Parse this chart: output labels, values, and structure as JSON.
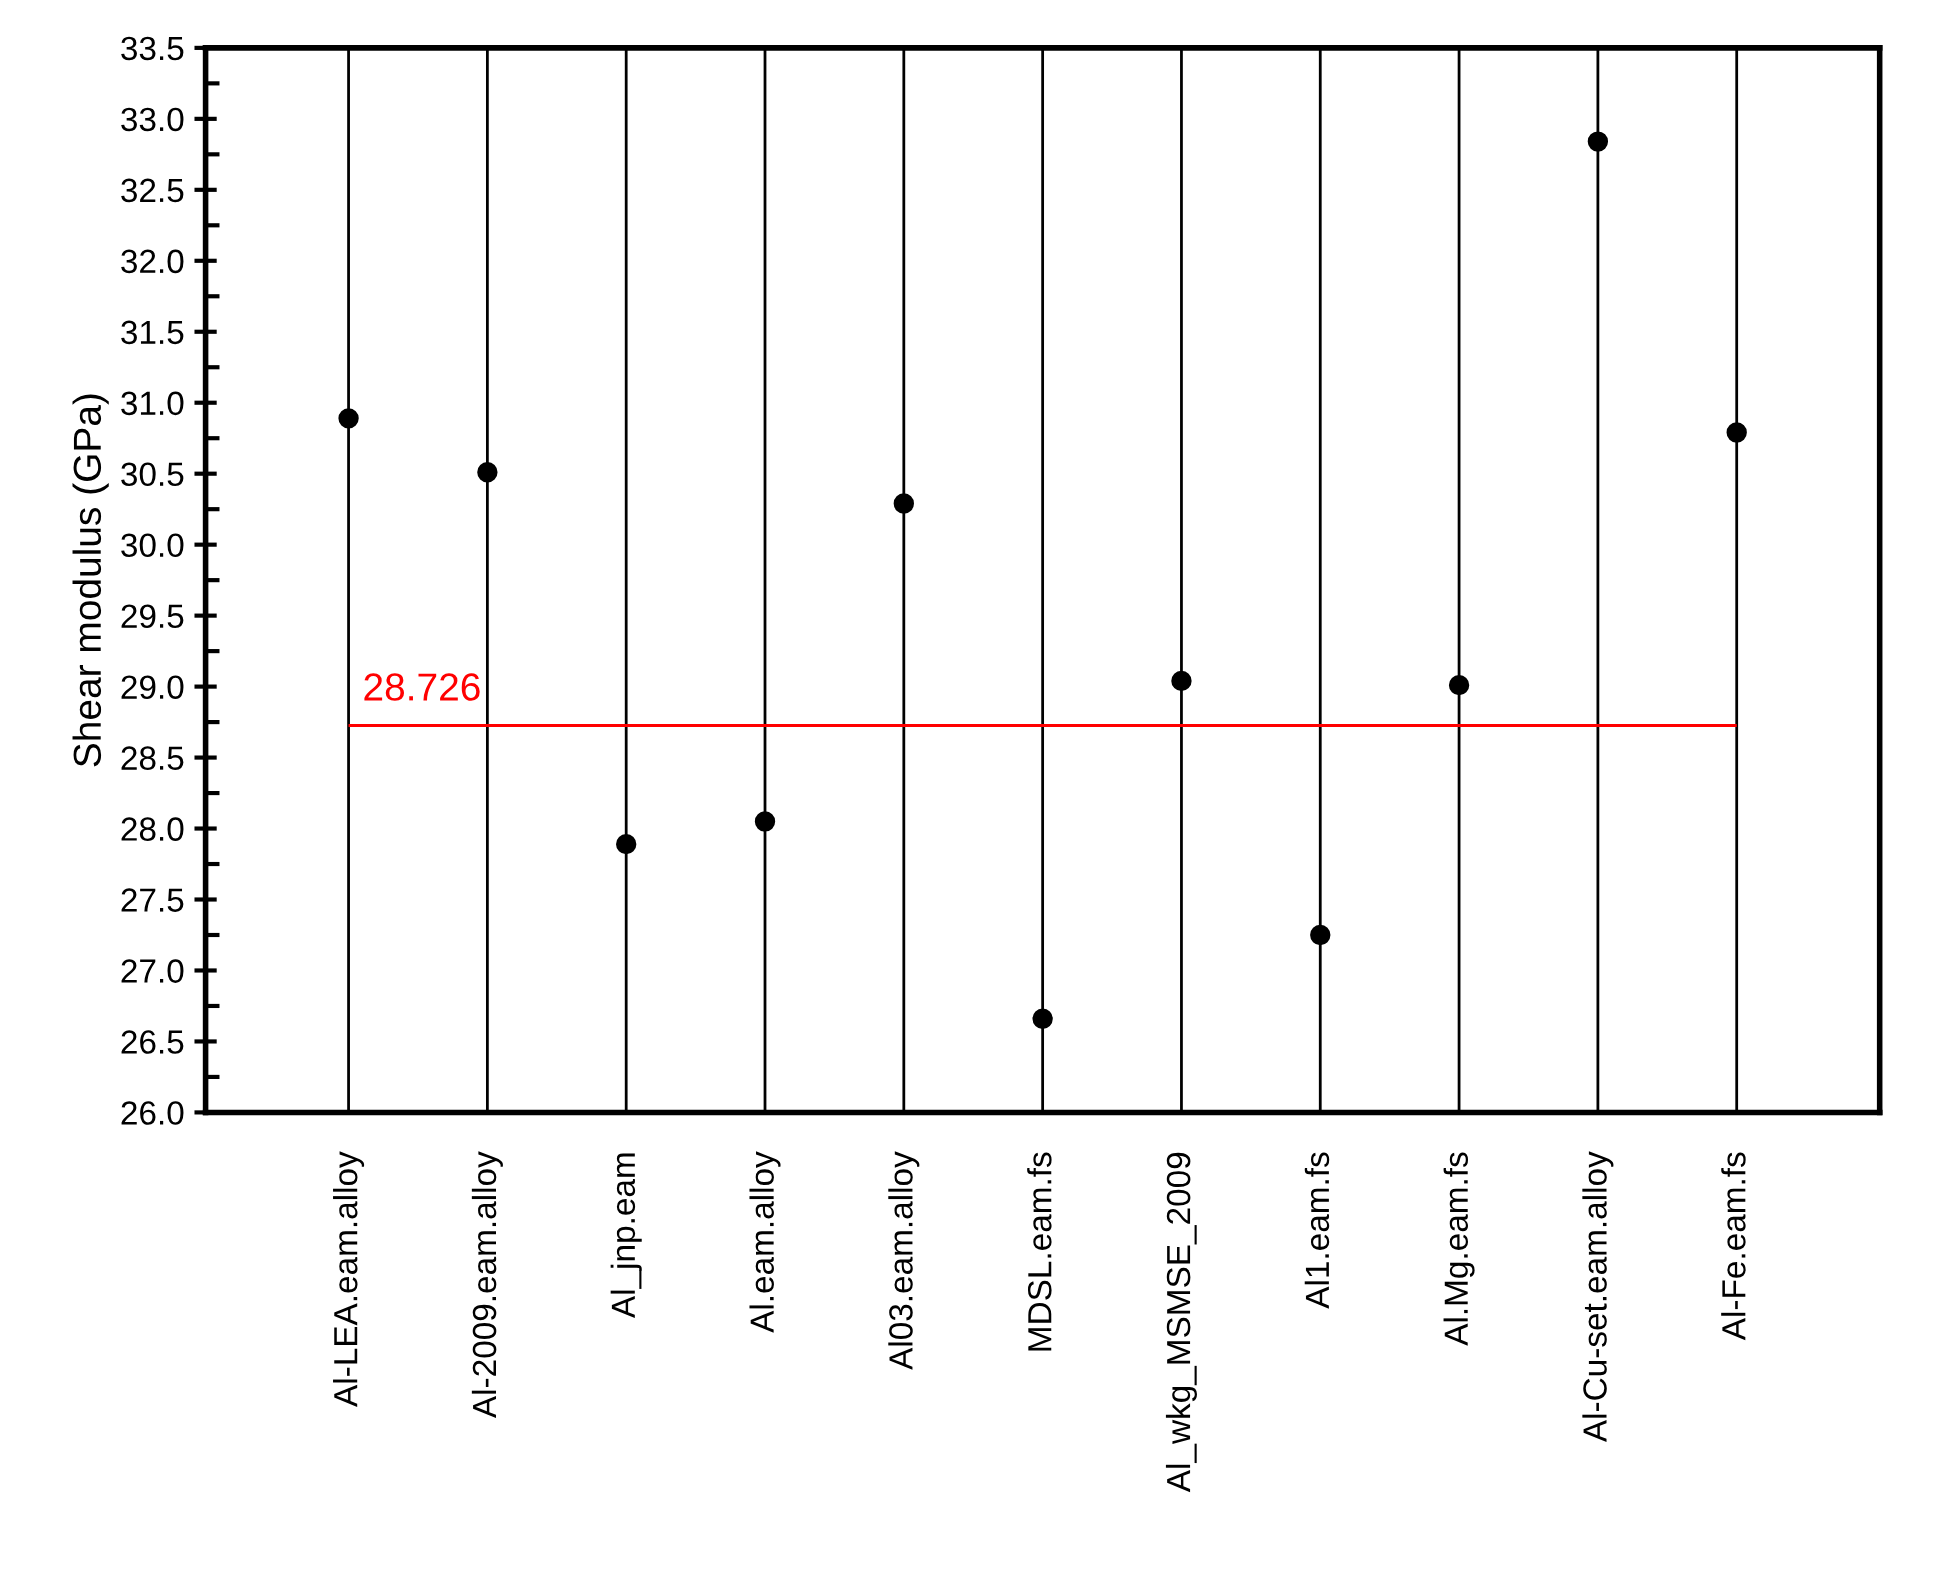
{
  "chart_data": {
    "type": "scatter",
    "ylabel": "Shear modulus (GPa)",
    "categories": [
      "Al-LEA.eam.alloy",
      "Al-2009.eam.alloy",
      "Al_jnp.eam",
      "Al.eam.alloy",
      "Al03.eam.alloy",
      "MDSL.eam.fs",
      "Al_wkg_MSMSE_2009",
      "Al1.eam.fs",
      "Al.Mg.eam.fs",
      "Al-Cu-set.eam.alloy",
      "Al-Fe.eam.fs"
    ],
    "series": [
      {
        "color": "#000000",
        "values": [
          30.89,
          30.51,
          27.89,
          28.05,
          30.29,
          26.66,
          29.04,
          27.25,
          29.01,
          32.84,
          30.79
        ]
      }
    ],
    "ylim": [
      26.0,
      33.5
    ],
    "yticks": [
      {
        "value": 26,
        "label": "26.0"
      },
      26.5,
      {
        "value": 27,
        "label": "27.0"
      },
      27.5,
      {
        "value": 28,
        "label": "28.0"
      },
      28.5,
      {
        "value": 29,
        "label": "29.0"
      },
      29.5,
      {
        "value": 30,
        "label": "30.0"
      },
      30.5,
      {
        "value": 31,
        "label": "31.0"
      },
      31.5,
      {
        "value": 32,
        "label": "32.0"
      },
      32.5,
      {
        "value": 33,
        "label": "33.0"
      },
      33.5
    ],
    "ref_lines": [
      {
        "axis": "y",
        "value": 28.726,
        "label": "28.726",
        "color": "#ff0000"
      }
    ],
    "grid": "x",
    "marker": "circle",
    "legend": false
  }
}
